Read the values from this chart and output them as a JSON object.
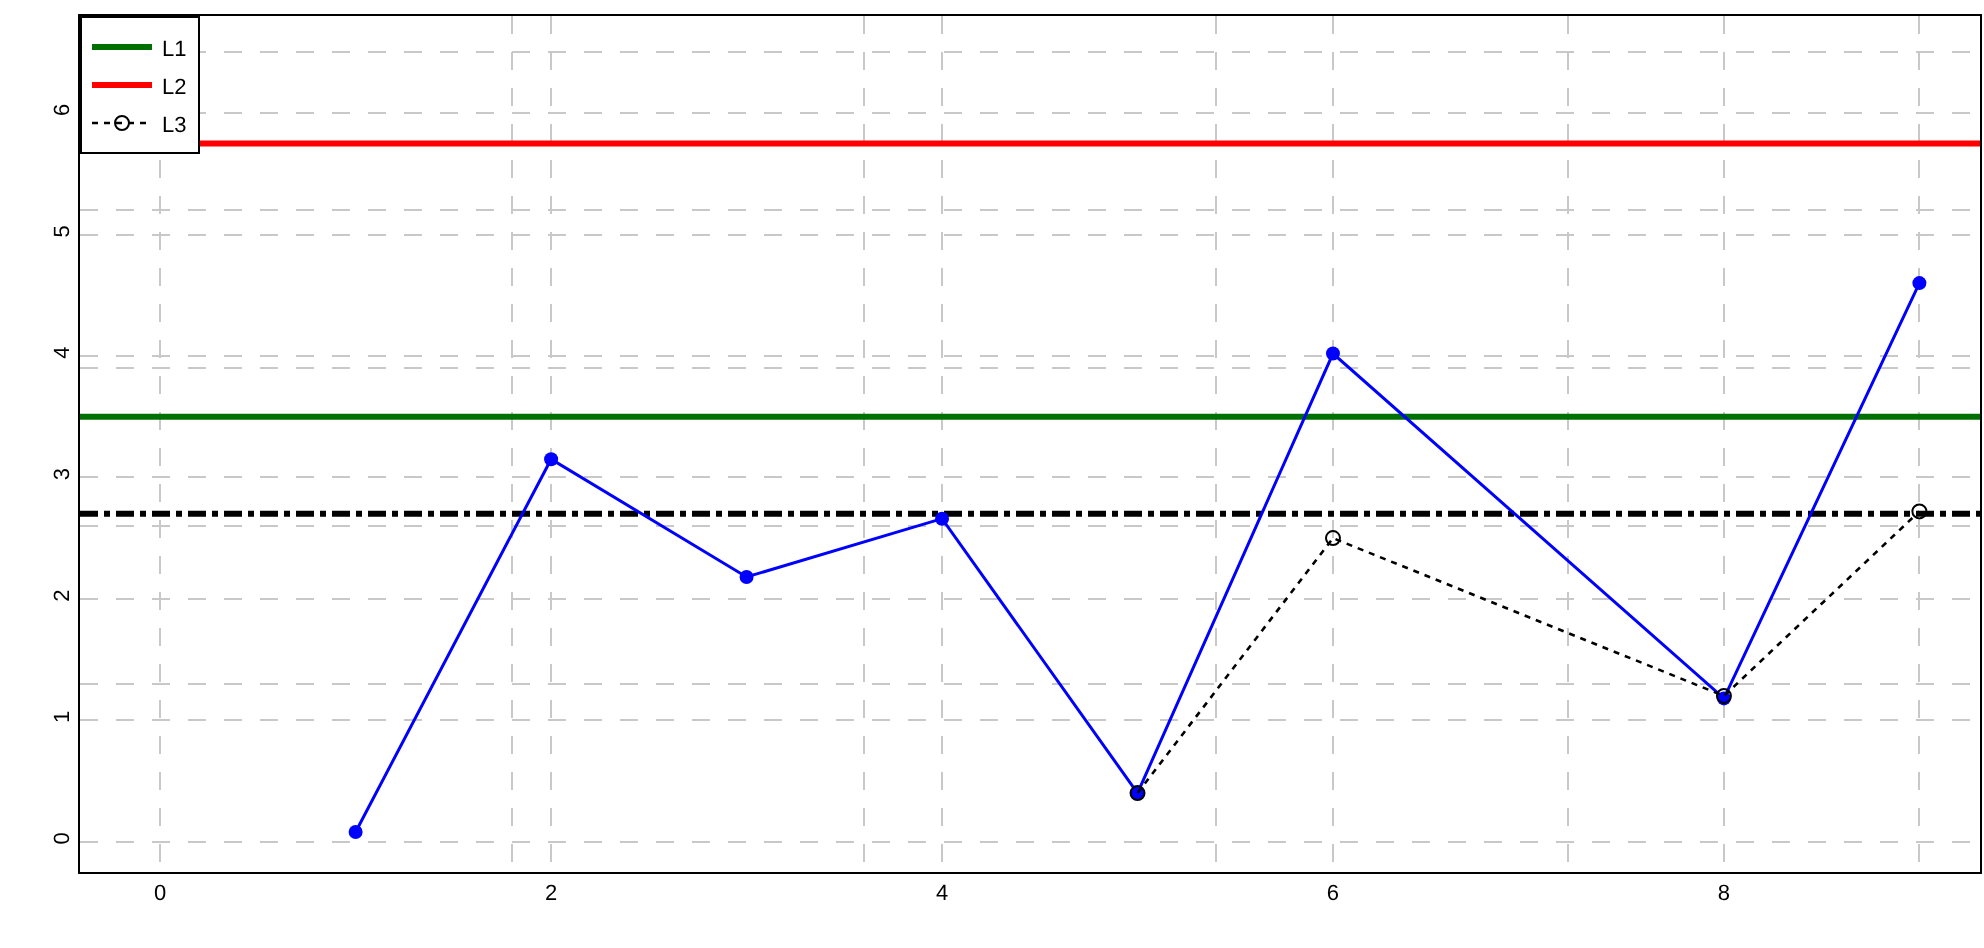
{
  "chart_data": {
    "type": "line",
    "x": [
      1,
      2,
      3,
      4,
      5,
      6,
      8,
      9
    ],
    "series": [
      {
        "color": "#0000ff",
        "values": [
          0.08,
          3.15,
          2.18,
          2.66,
          0.4,
          4.02,
          1.18,
          4.6
        ],
        "marker": "circle",
        "line_style": "solid"
      },
      {
        "name": "L3",
        "color": "#000000",
        "x": [
          5,
          6,
          8,
          9
        ],
        "values": [
          0.4,
          2.5,
          1.2,
          2.72
        ],
        "marker": "open circle",
        "line_style": "dotted"
      }
    ],
    "ref_lines": [
      {
        "axis": "y",
        "value": 3.5,
        "label": "L1",
        "color": "#007000",
        "line_style": "solid"
      },
      {
        "axis": "y",
        "value": 5.75,
        "label": "L2",
        "color": "#ff0000",
        "line_style": "solid"
      },
      {
        "axis": "y",
        "value": 2.7,
        "color": "#000000",
        "line_style": "dashdot"
      }
    ],
    "xlim": [
      -0.41,
      9.31
    ],
    "ylim": [
      -0.25,
      6.8
    ],
    "xticks": [
      0,
      {
        "value": 1.8,
        "label": null
      },
      2,
      {
        "value": 3.6,
        "label": null
      },
      4,
      {
        "value": 5.4,
        "label": null
      },
      6,
      {
        "value": 7.2,
        "label": null
      },
      8,
      {
        "value": 9.0,
        "label": null
      }
    ],
    "yticks": [
      0,
      1,
      {
        "value": 1.3,
        "label": null
      },
      2,
      {
        "value": 2.6,
        "label": null
      },
      3,
      {
        "value": 3.9,
        "label": null
      },
      4,
      5,
      {
        "value": 5.2,
        "label": null
      },
      6,
      {
        "value": 6.5,
        "label": null
      }
    ],
    "grid": true,
    "legend": "top left"
  }
}
